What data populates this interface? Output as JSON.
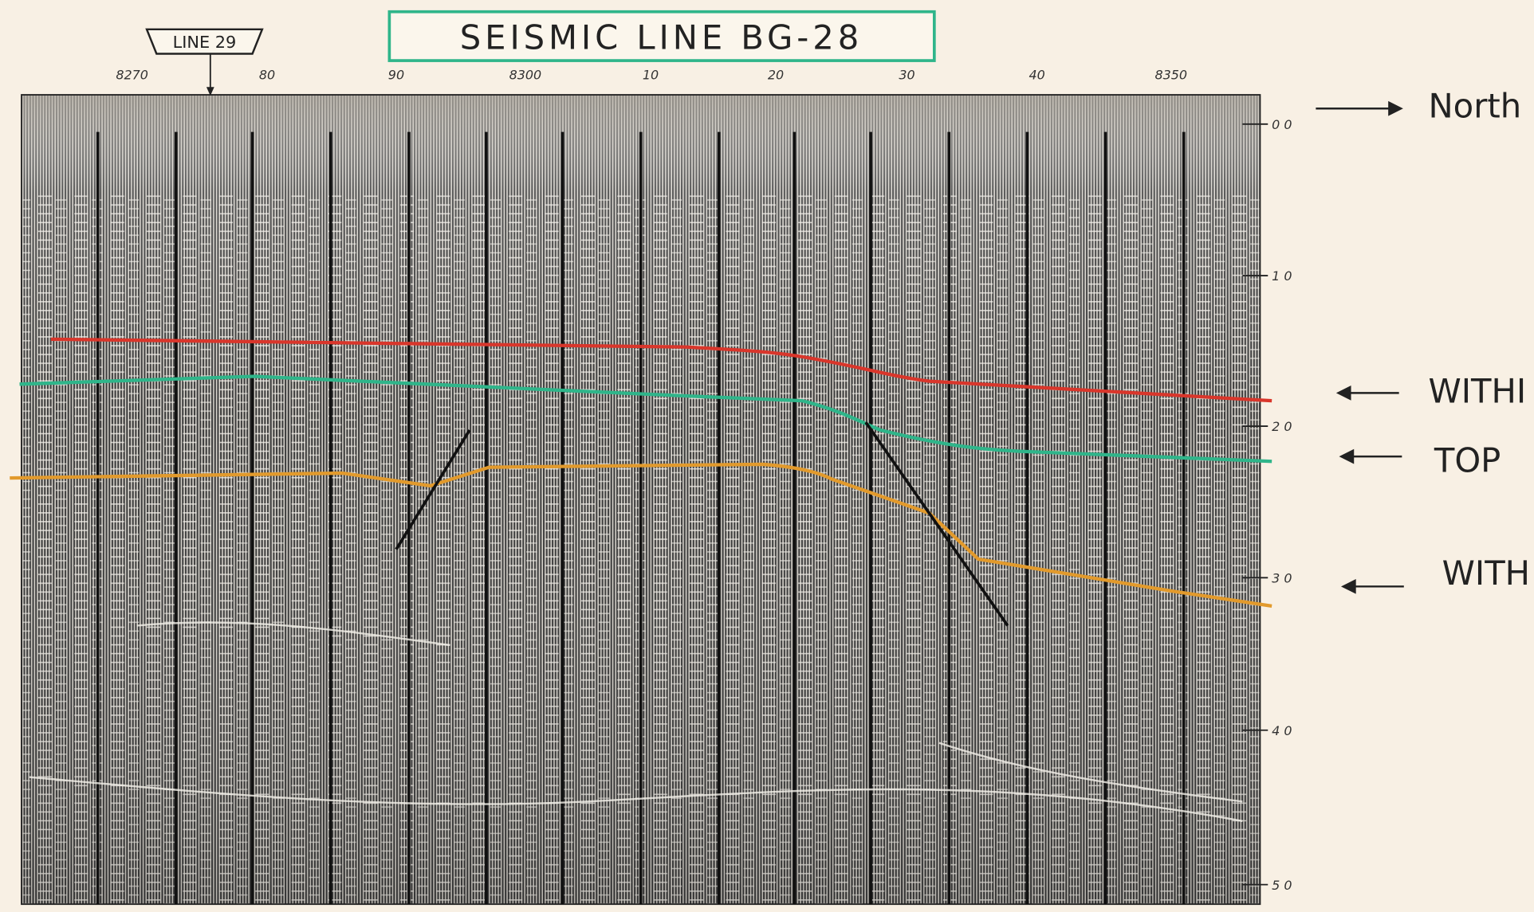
{
  "header": {
    "title": "SEISMIC LINE BG-28",
    "line_marker": "LINE 29"
  },
  "shotpoints": [
    "8270",
    "80",
    "90",
    "8300",
    "10",
    "20",
    "30",
    "40",
    "8350"
  ],
  "time_labels": [
    "0 0",
    "1 0",
    "2 0",
    "3 0",
    "4 0",
    "5 0"
  ],
  "annotations": [
    "North",
    "WITHI",
    "TOP",
    "WITH"
  ]
}
